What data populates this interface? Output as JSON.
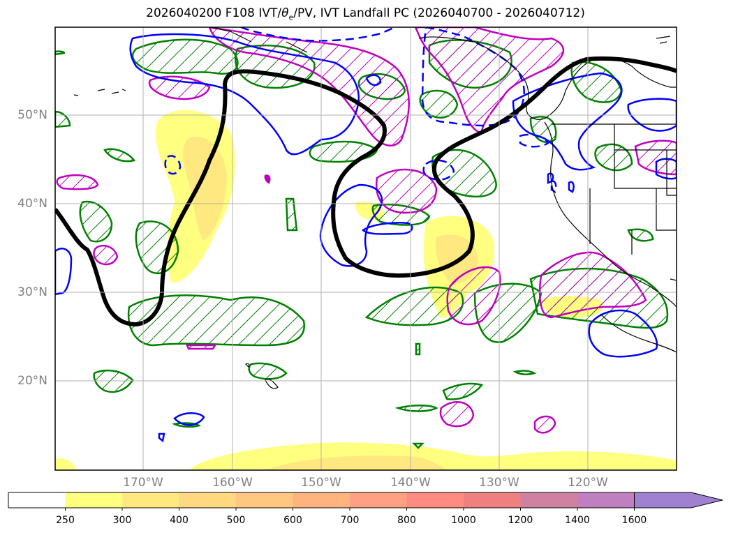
{
  "title": {
    "prefix": "2026040200 F108 IVT/",
    "theta": "θ",
    "theta_sub": "e",
    "suffix": "/PV, IVT Landfall PC (2026040700 - 2026040712)"
  },
  "map": {
    "lat_labels": [
      "50°N",
      "40°N",
      "30°N",
      "20°N"
    ],
    "lon_labels": [
      "170°W",
      "160°W",
      "150°W",
      "140°W",
      "130°W",
      "120°W"
    ],
    "colors": {
      "ivt_contour": "#000000",
      "positive_pc": "#0000ff",
      "negative_pc": "#0000ff",
      "theta_e": "#008000",
      "pv": "#c000c0",
      "ivt_fill_250": "#ffff80",
      "ivt_fill_300": "#ffe880"
    }
  },
  "colorbar": {
    "ticks": [
      "250",
      "300",
      "400",
      "500",
      "600",
      "700",
      "800",
      "1000",
      "1200",
      "1400",
      "1600"
    ],
    "colors": [
      "#ffff80",
      "#ffe880",
      "#ffd880",
      "#ffc880",
      "#ffb480",
      "#ffa080",
      "#ff8c80",
      "#f08080",
      "#d080a0",
      "#c080c0",
      "#a080d0",
      "#a080d0"
    ]
  }
}
